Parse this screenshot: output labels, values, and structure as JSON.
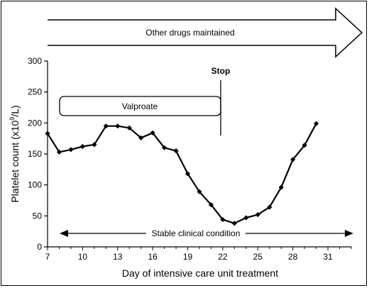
{
  "chart_data": {
    "type": "line",
    "xlabel": "Day of intensive care unit treatment",
    "ylabel_prefix": "Platelet count (x10",
    "ylabel_sup": "9",
    "ylabel_suffix": "/L)",
    "xlim": [
      7,
      33
    ],
    "ylim": [
      0,
      300
    ],
    "x_ticks": [
      7,
      10,
      13,
      16,
      19,
      22,
      25,
      28,
      31
    ],
    "y_ticks": [
      0,
      50,
      100,
      150,
      200,
      250,
      300
    ],
    "x": [
      7,
      8,
      9,
      10,
      11,
      12,
      13,
      14,
      15,
      16,
      17,
      18,
      19,
      20,
      21,
      22,
      23,
      24,
      25,
      26,
      27,
      28,
      29,
      30
    ],
    "y": [
      183,
      153,
      157,
      162,
      165,
      195,
      195,
      192,
      176,
      184,
      160,
      155,
      118,
      89,
      68,
      44,
      38,
      47,
      52,
      64,
      96,
      141,
      164,
      199
    ],
    "annotations": {
      "top_arrow": {
        "label": "Other drugs maintained"
      },
      "valproate": {
        "label": "Valproate",
        "x_start": 8,
        "x_end": 22
      },
      "stop": {
        "label": "Stop",
        "x": 22
      },
      "bottom_arrow": {
        "label": "Stable clinical condition",
        "x_start": 8,
        "x_end": 32
      }
    }
  }
}
